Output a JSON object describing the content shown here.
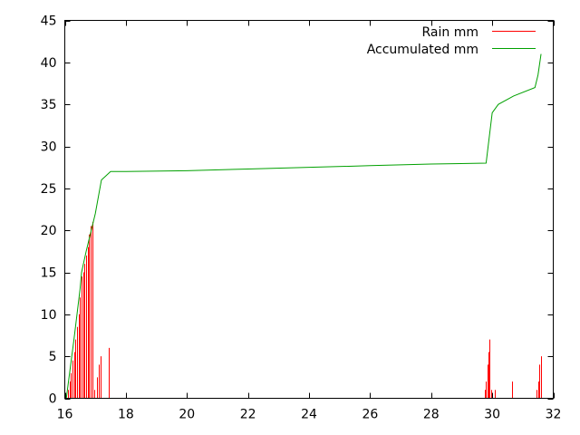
{
  "chart_data": {
    "type": "line",
    "title": "",
    "xlabel": "",
    "ylabel": "",
    "xlim": [
      16,
      32
    ],
    "ylim": [
      0,
      45
    ],
    "x_ticks": [
      16,
      18,
      20,
      22,
      24,
      26,
      28,
      30,
      32
    ],
    "y_ticks": [
      0,
      5,
      10,
      15,
      20,
      25,
      30,
      35,
      40,
      45
    ],
    "grid": false,
    "legend_position": "top-right",
    "series": [
      {
        "name": "Rain mm",
        "style": "impulses",
        "color": "#ff0000",
        "points": [
          [
            16.1,
            1
          ],
          [
            16.15,
            2
          ],
          [
            16.2,
            3
          ],
          [
            16.25,
            4.5
          ],
          [
            16.3,
            5.5
          ],
          [
            16.35,
            7
          ],
          [
            16.4,
            8.5
          ],
          [
            16.45,
            10
          ],
          [
            16.5,
            12
          ],
          [
            16.55,
            14.5
          ],
          [
            16.6,
            15
          ],
          [
            16.65,
            16
          ],
          [
            16.7,
            17
          ],
          [
            16.75,
            18
          ],
          [
            16.8,
            19.5
          ],
          [
            16.85,
            20.5
          ],
          [
            16.9,
            21
          ],
          [
            16.95,
            1
          ],
          [
            17.05,
            2.5
          ],
          [
            17.1,
            4
          ],
          [
            17.18,
            5
          ],
          [
            17.45,
            6
          ],
          [
            29.75,
            1
          ],
          [
            29.8,
            2
          ],
          [
            29.85,
            4
          ],
          [
            29.88,
            5.5
          ],
          [
            29.92,
            7
          ],
          [
            29.96,
            1
          ],
          [
            30.1,
            1
          ],
          [
            30.65,
            2
          ],
          [
            31.45,
            1
          ],
          [
            31.5,
            2
          ],
          [
            31.55,
            4
          ],
          [
            31.6,
            5
          ]
        ]
      },
      {
        "name": "Accumulated mm",
        "style": "line",
        "color": "#00a000",
        "points": [
          [
            16.05,
            0
          ],
          [
            16.3,
            7
          ],
          [
            16.5,
            13
          ],
          [
            16.55,
            15
          ],
          [
            16.7,
            17.5
          ],
          [
            16.9,
            20.5
          ],
          [
            17.0,
            22
          ],
          [
            17.2,
            26
          ],
          [
            17.5,
            27
          ],
          [
            18,
            27
          ],
          [
            20,
            27.1
          ],
          [
            22,
            27.3
          ],
          [
            24,
            27.5
          ],
          [
            26,
            27.7
          ],
          [
            28,
            27.9
          ],
          [
            29.8,
            28
          ],
          [
            29.9,
            31
          ],
          [
            30.0,
            34
          ],
          [
            30.2,
            35
          ],
          [
            30.7,
            36
          ],
          [
            31.4,
            37
          ],
          [
            31.5,
            38.5
          ],
          [
            31.6,
            41
          ]
        ]
      }
    ]
  }
}
